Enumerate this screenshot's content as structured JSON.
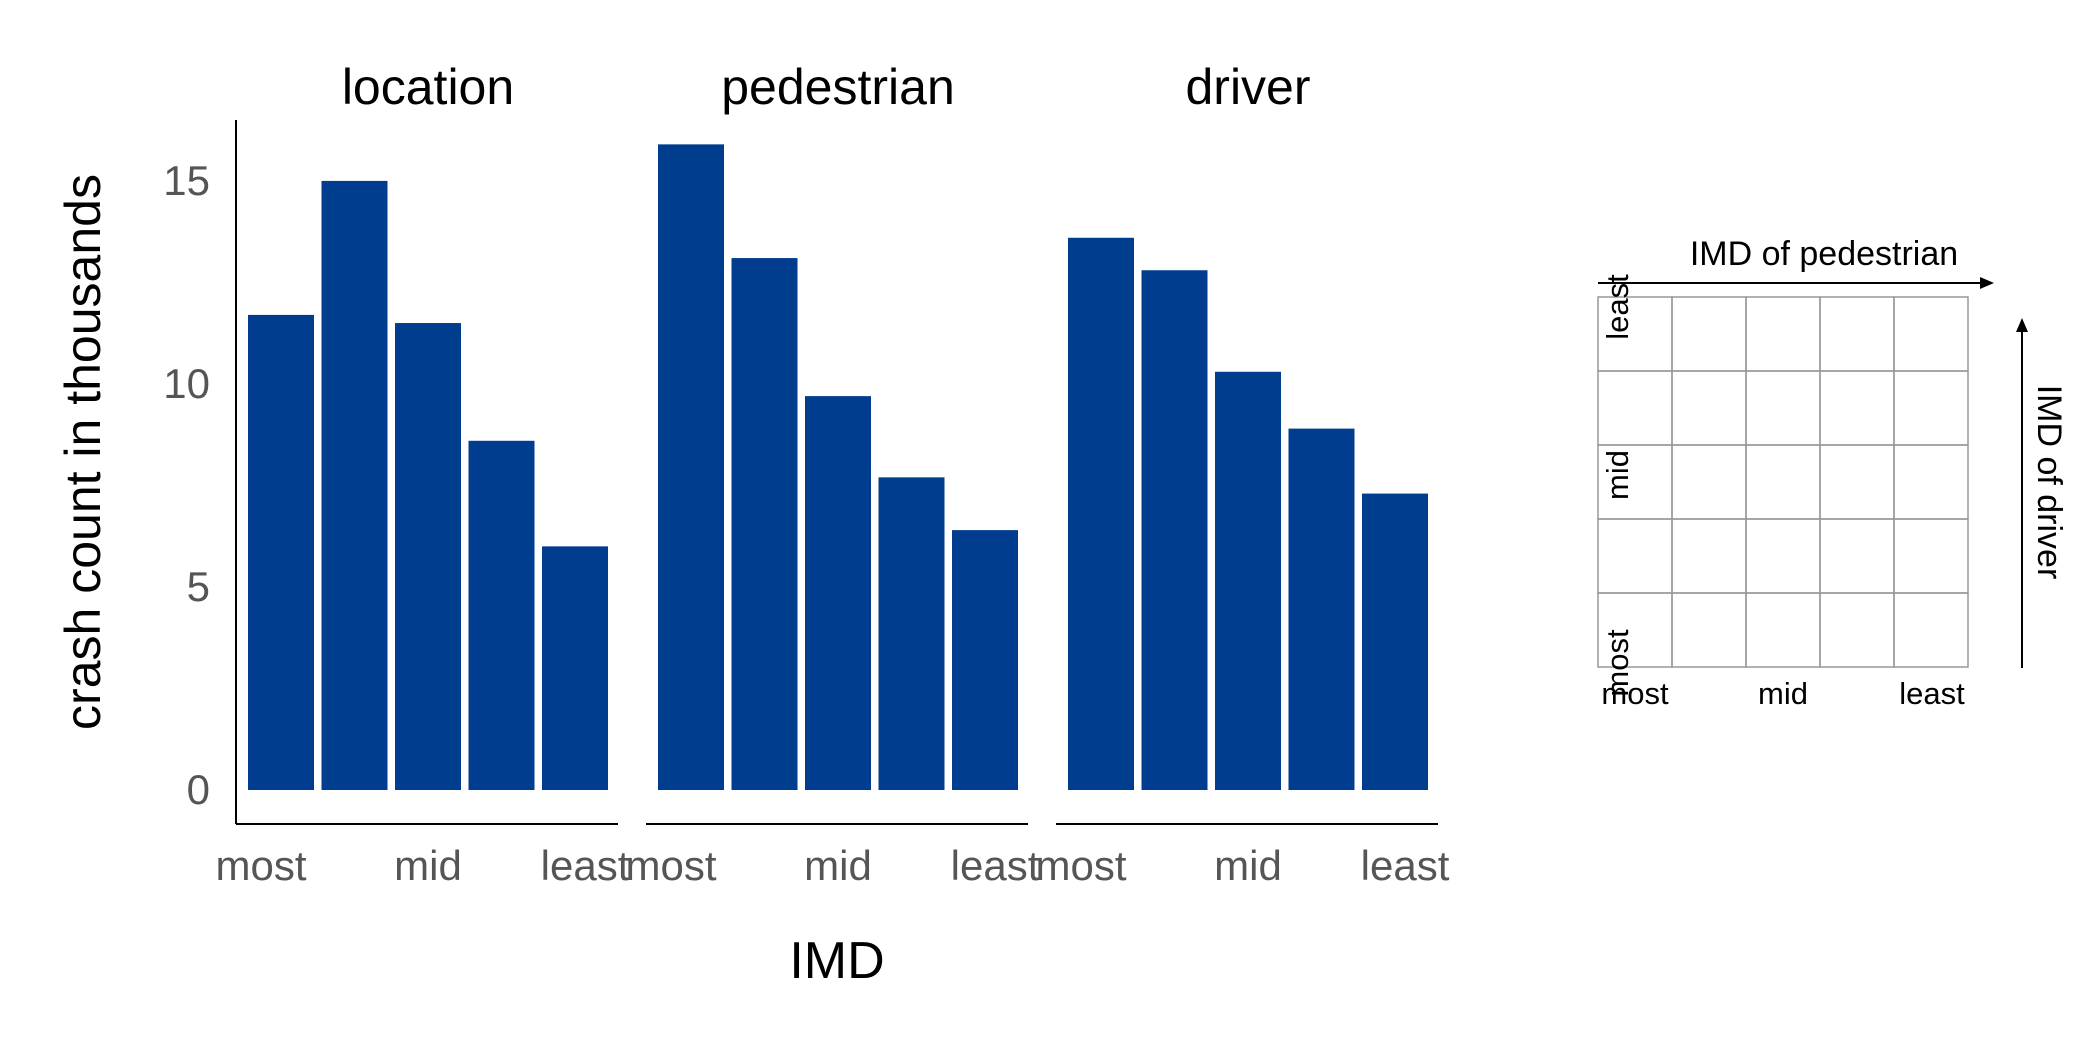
{
  "chart_data": {
    "type": "bar",
    "ylabel": "crash count in thousands",
    "xlabel": "IMD",
    "ylim": [
      0,
      16.5
    ],
    "yticks": [
      0,
      5,
      10,
      15
    ],
    "tick_labels": [
      "most",
      "mid",
      "least"
    ],
    "categories": [
      "1",
      "2",
      "3",
      "4",
      "5"
    ],
    "bar_color": "#003d8f",
    "grid": false,
    "panels": [
      {
        "name": "location",
        "values": [
          11.7,
          15.0,
          11.5,
          8.6,
          6.0
        ]
      },
      {
        "name": "pedestrian",
        "values": [
          15.9,
          13.1,
          9.7,
          7.7,
          6.4
        ]
      },
      {
        "name": "driver",
        "values": [
          13.6,
          12.8,
          10.3,
          8.9,
          7.3
        ]
      }
    ]
  },
  "legend_grid": {
    "x_title": "IMD of pedestrian",
    "y_title": "IMD of driver",
    "x_labels": [
      "most",
      "mid",
      "least"
    ],
    "y_labels": [
      "most",
      "mid",
      "least"
    ],
    "rows": 5,
    "cols": 5
  }
}
